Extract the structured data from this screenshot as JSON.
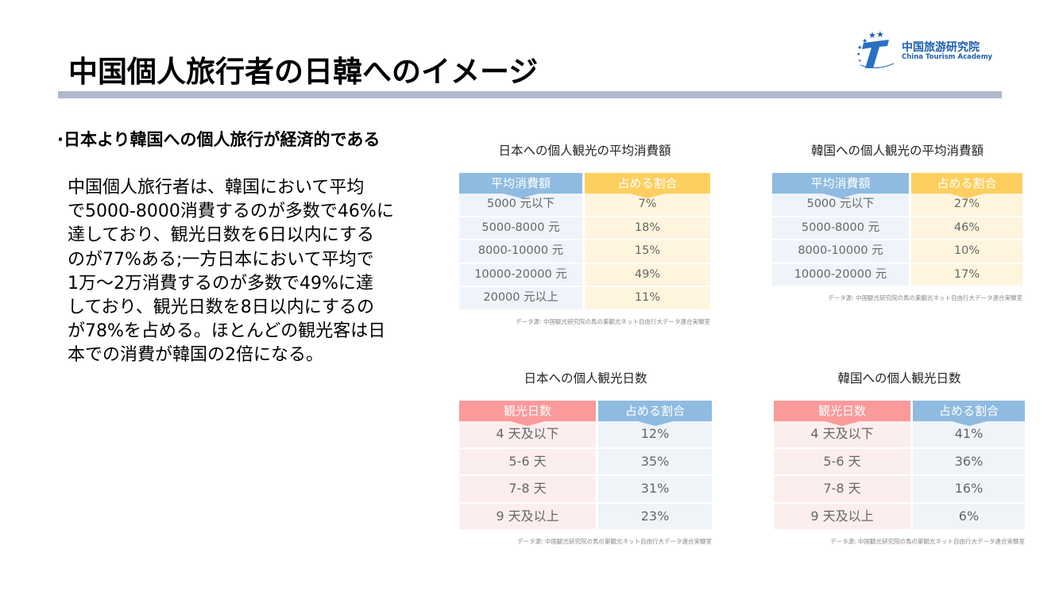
{
  "header": {
    "title": "中国個人旅行者の日韓へのイメージ",
    "logo": {
      "name_cn": "中国旅游研究院",
      "name_en": "China Tourism Academy"
    }
  },
  "left": {
    "bullet": "·日本より韓国への個人旅行が経済的である",
    "paragraph_lines": [
      "中国個人旅行者は、韓国において平均",
      "で5000-8000消費するのが多数で46%に",
      "達しており、観光日数を6日以内にする",
      "のが77%ある;一方日本において平均で",
      "1万～2万消費するのが多数で49%に達",
      "しており、観光日数を8日以内にするの",
      "が78%を占める。ほとんどの観光客は日",
      "本での消費が韓国の2倍になる。"
    ]
  },
  "tables": [
    {
      "title": "日本への個人観光の平均消費額",
      "headers": [
        "平均消費額",
        "占める割合"
      ],
      "rows": [
        [
          "5000 元以下",
          "7%"
        ],
        [
          "5000-8000 元",
          "18%"
        ],
        [
          "8000-10000 元",
          "15%"
        ],
        [
          "10000-20000 元",
          "49%"
        ],
        [
          "20000 元以上",
          "11%"
        ]
      ],
      "source": "データ源: 中国観光研究院の馬の巣観光ネット自由行大データ連合実験室",
      "colors": {
        "h1": "#8fbbe0",
        "h2": "#fccf5f",
        "c1": "#eef4fa",
        "c2": "#fff5de"
      }
    },
    {
      "title": "韓国への個人観光の平均消費額",
      "headers": [
        "平均消費額",
        "占める割合"
      ],
      "rows": [
        [
          "5000 元以下",
          "27%"
        ],
        [
          "5000-8000 元",
          "46%"
        ],
        [
          "8000-10000 元",
          "10%"
        ],
        [
          "10000-20000 元",
          "17%"
        ]
      ],
      "source": "データ源: 中国観光研究院の馬の巣観光ネット自由行大データ連合実験室",
      "colors": {
        "h1": "#8fbbe0",
        "h2": "#fccf5f",
        "c1": "#eef4fa",
        "c2": "#fff5de"
      }
    },
    {
      "title": "日本への個人観光日数",
      "headers": [
        "観光日数",
        "占める割合"
      ],
      "rows": [
        [
          "4 天及以下",
          "12%"
        ],
        [
          "5-6 天",
          "35%"
        ],
        [
          "7-8 天",
          "31%"
        ],
        [
          "9 天及以上",
          "23%"
        ]
      ],
      "source": "データ源: 中国観光研究院の馬の巣観光ネット自由行大データ連合実験室",
      "colors": {
        "h1": "#fb9a9a",
        "h2": "#8fbbe0",
        "c1": "#fdeeee",
        "c2": "#eff4f9"
      }
    },
    {
      "title": "韓国への個人観光日数",
      "headers": [
        "観光日数",
        "占める割合"
      ],
      "rows": [
        [
          "4 天及以下",
          "41%"
        ],
        [
          "5-6 天",
          "36%"
        ],
        [
          "7-8 天",
          "16%"
        ],
        [
          "9 天及以上",
          "6%"
        ]
      ],
      "source": "データ源: 中国観光研究院の馬の巣観光ネット自由行大データ連合実験室",
      "colors": {
        "h1": "#fb9a9a",
        "h2": "#8fbbe0",
        "c1": "#fdeeee",
        "c2": "#eff4f9"
      }
    }
  ]
}
